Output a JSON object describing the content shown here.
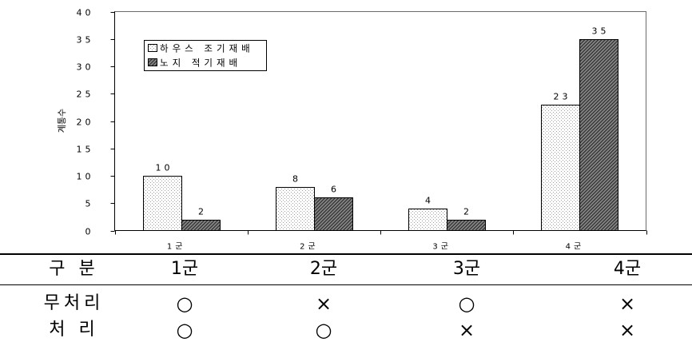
{
  "chart_data": {
    "type": "bar",
    "ylabel": "계통수",
    "categories": [
      "1군",
      "2군",
      "3군",
      "4군"
    ],
    "series": [
      {
        "name": "하우스 조기재배",
        "values": [
          10,
          8,
          4,
          23
        ],
        "color": "#ffffff"
      },
      {
        "name": "노지 적기재배",
        "values": [
          2,
          6,
          2,
          35
        ],
        "color": "#8a8a8a"
      }
    ],
    "ylim": [
      0,
      40
    ],
    "yticks": [
      0,
      5,
      10,
      15,
      20,
      25,
      30,
      35,
      40
    ],
    "grid": false,
    "legend_position": "top-left",
    "data_labels": true
  },
  "table": {
    "header": {
      "label": "구 분",
      "columns": [
        "1군",
        "2군",
        "3군",
        "4군"
      ]
    },
    "rows": [
      {
        "label": "무처리",
        "cells": [
          "○",
          "×",
          "○",
          "×"
        ]
      },
      {
        "label": "처 리",
        "cells": [
          "○",
          "○",
          "×",
          "×"
        ]
      }
    ]
  }
}
